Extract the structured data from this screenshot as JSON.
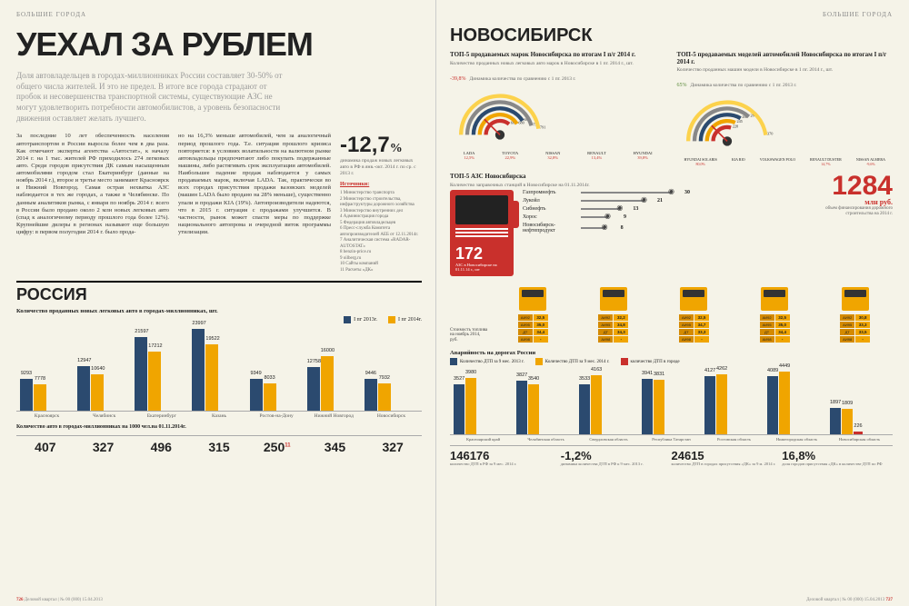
{
  "header": {
    "section_left": "БОЛЬШИЕ ГОРОДА",
    "section_right": "БОЛЬШИЕ ГОРОДА"
  },
  "headline": "УЕХАЛ ЗА РУБЛЕМ",
  "lead": "Доля автовладельцев в городах-миллионниках России составляет 30-50% от общего числа жителей. И это не предел. В итоге все города страдают от пробок и несовершенства транспортной системы, существующие АЗС не могут удовлетворить потребности автомобилистов, а уровень безопасности движения оставляет желать лучшего.",
  "body": {
    "col1": "За последние 10 лет обеспеченность населения автотранспортом в России выросла более чем в два раза. Как отмечают эксперты агентства «Автостат», к началу 2014 г. на 1 тыс. жителей РФ приходилось 274 легковых авто. Среди городов присутствия ДК самым насыщенным автомобилями городом стал Екатеринбург (данные на ноябрь 2014 г.), второе и третье место занимают Красноярск и Нижний Новгород. Самая острая нехватка АЗС наблюдается в тех же городах, а также в Челябинске. По данным аналитиков рынка, с января по ноябрь 2014 г. всего в России было продано около 2 млн новых легковых авто (спад к аналогичному периоду прошлого года более 12%). Крупнейшие дилеры в регионах называют еще большую цифру: в первом полугодии 2014 г. было прода-",
    "col2": "но на 16,3% меньше автомобилей, чем за аналогичный период прошлого года. Т.е. ситуация прошлого кризиса повторяется: в условиях волатильности на валютном рынке автовладельцы предпочитают либо покупать подержанные машины, либо растягивать срок эксплуатации автомобилей. Наибольшее падение продаж наблюдается у самых продаваемых марок, включая LADA. Так, практически во всех городах присутствия продажи вазовских моделей (машин LADA было продано на 28% меньше), существенно упали и продажи KIA (19%). Автопроизводители надеются, что в 2015 г. ситуация с продажами улучшится. В частности, рынок может спасти меры по поддержке национального автопрома и очередной виток программы утилизации."
  },
  "bigstat": {
    "value": "-12,7",
    "unit": "%",
    "caption": "динамика продаж новых легковых авто в РФ в янв.-окт. 2014 г. по ср. с 2013 г."
  },
  "sources": {
    "title": "Источники:",
    "items": [
      "1 Министерство транспорта",
      "2 Министерство строительства, инфраструктуры дорожного хозяйства",
      "3 Министерство внутренних дел",
      "4 Администрация города",
      "5 Федерация автовладельцев",
      "6 Пресс-служба Комитета автопроизводителей АЕБ от 12.11.2014г.",
      "7 Аналитическая система «RADAR-AUTOSTAT»",
      "8 benzin-price.ru",
      "9 oilberg.ru",
      "10 Сайты компаний",
      "11 Расчеты «ДК»"
    ]
  },
  "russia": {
    "title": "РОССИЯ",
    "chart": {
      "subtitle": "Количество проданных новых легковых авто в городах-миллионниках, шт.",
      "legend": [
        {
          "label": "I пг 2013г.",
          "color": "#2b4a6f"
        },
        {
          "label": "I пг 2014г.",
          "color": "#f0a500"
        }
      ],
      "cities": [
        "Красноярск",
        "Челябинск",
        "Екатеринбург",
        "Казань",
        "Ростов-на-Дону",
        "Нижний Новгород",
        "Новосибирск"
      ],
      "v2013": [
        9293,
        12947,
        21597,
        23997,
        9349,
        12758,
        9446
      ],
      "v2014": [
        7778,
        10640,
        17212,
        19522,
        8033,
        16000,
        7932
      ],
      "max": 24000,
      "colors": [
        "#2b4a6f",
        "#f0a500"
      ]
    },
    "stats": {
      "title": "Количество авто в городах-миллионниках на 1000 чел.на 01.11.2014г.",
      "values": [
        "407",
        "327",
        "496",
        "315",
        "250",
        "345",
        "327"
      ],
      "notes": [
        "",
        "",
        "",
        "",
        "11",
        "",
        ""
      ]
    }
  },
  "city": {
    "name": "НОВОСИБИРСК",
    "top5brands": {
      "title": "ТОП-5 продаваемых марок Новосибирска по итогам I п/г 2014 г.",
      "sub": "Количество проданных новых легковых авто марок в Новосибирске в 1 пг. 2014 г., шт.",
      "pct": "-39,8%",
      "pctcap": "Динамика количества по сравнению с 1 пг. 2013 г.",
      "labels": [
        "LADA",
        "TOYOTA",
        "NISSAN",
        "RENAULT",
        "HYUNDAI"
      ],
      "values": [
        603,
        680,
        684,
        757,
        791
      ],
      "growth": [
        "12,5%",
        "22,9%",
        "32,8%",
        "13,4%",
        "39,8%"
      ],
      "colors": [
        "#c9302c",
        "#f0a500",
        "#2b4a6f",
        "#888",
        "#fcd24c"
      ]
    },
    "top5models": {
      "title": "ТОП-5 продаваемых моделей автомобилей Новосибирска по итогам I п/г 2014 г.",
      "sub": "Количество проданных машин модели в Новосибирске в 1 пг. 2014 г., шт.",
      "pct": "65%",
      "pctcap": "Динамика количества по сравнению с 1 пг. 2013 г.",
      "labels": [
        "HYUNDAI SOLARIS",
        "KIA RIO",
        "VOLKSWAGEN POLO",
        "RENAULT DUSTER",
        "NISSAN ALMERA"
      ],
      "values": [
        228,
        245,
        260,
        284,
        370
      ],
      "growth": [
        "80,0%",
        "",
        "",
        "14,7%",
        "-9,6%"
      ],
      "colors": [
        "#c9302c",
        "#f0a500",
        "#2b4a6f",
        "#888",
        "#fcd24c"
      ]
    },
    "azs": {
      "title": "ТОП-5 АЗС Новосибирска",
      "sub": "Количество заправочных станций в Новосибирске на 01.11.2014г.",
      "names": [
        "Газпромнефть",
        "Лукойл",
        "Сибнефть",
        "Хорос",
        "Новосибирск-нефтепродукт"
      ],
      "values": [
        30,
        21,
        13,
        9,
        8
      ]
    },
    "pump": {
      "num": "172",
      "cap": "АЗС в Новосибирске на 01.11.14 г., шт"
    },
    "bignum": {
      "val": "1284",
      "unit": "млн руб.",
      "cap": "объем финансирования дорожного строительства на 2014 г."
    },
    "fuel": {
      "pricecap": "Стоимость топлива на ноябрь 2014, руб.",
      "stations": [
        "",
        "",
        "",
        "",
        ""
      ],
      "labels": [
        "АИ92",
        "АИ95",
        "ДТ",
        "АИ98"
      ],
      "prices": [
        [
          "32,5",
          "35,0",
          "34,4",
          "-"
        ],
        [
          "32,2",
          "34,8",
          "34,3",
          "-"
        ],
        [
          "32,5",
          "34,7",
          "33,3",
          "-"
        ],
        [
          "32,5",
          "35,0",
          "34,4",
          "-"
        ],
        [
          "30,8",
          "33,3",
          "33,5",
          "-"
        ]
      ]
    },
    "accidents": {
      "title": "Аварийность на дорогах России",
      "legend": [
        {
          "label": "Количество ДТП за 9 мес. 2013 г.",
          "color": "#2b4a6f"
        },
        {
          "label": "Количество ДТП за 9 мес. 2014 г.",
          "color": "#f0a500"
        },
        {
          "label": "количество ДТП в городе",
          "color": "#c9302c"
        }
      ],
      "cities": [
        "Красноярский край",
        "Челябинская область",
        "Свердловская область",
        "Республика Татарстан",
        "Ростовская область",
        "Нижегородская область",
        "Новосибирская область"
      ],
      "blue": [
        3527,
        3827,
        3533,
        3941,
        4127,
        4089,
        1897
      ],
      "yel": [
        3980,
        3540,
        4163,
        3831,
        4262,
        4449,
        1809
      ],
      "red": [
        null,
        null,
        null,
        null,
        null,
        null,
        226
      ],
      "max": 4500
    },
    "botstats": [
      {
        "v": "146176",
        "l": "количество ДТП в РФ за 9 мес. 2014 г."
      },
      {
        "v": "-1,2%",
        "l": "динамика количества ДТП в РФ к 9 мес. 2013 г."
      },
      {
        "v": "24615",
        "l": "количество ДТП в городах присутствия «ДК» за 9 м. 2014 г."
      },
      {
        "v": "16,8%",
        "l": "доля городов присутствия «ДК» в количестве ДТП по РФ"
      }
    ]
  },
  "footer": {
    "left_pg": "726",
    "right_pg": "727",
    "pub": "Деловой квартал | № 00 (000) 15.04.2013"
  }
}
